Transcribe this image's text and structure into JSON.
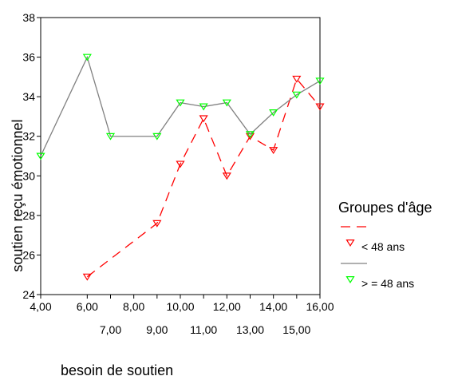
{
  "chart_data": {
    "type": "line",
    "xlabel": "besoin de soutien",
    "ylabel": "soutien reçu émotionnel",
    "xlim": [
      4,
      16
    ],
    "ylim": [
      24,
      38
    ],
    "x_ticks_row1": [
      "4,00",
      "6,00",
      "8,00",
      "10,00",
      "12,00",
      "14,00",
      "16,00"
    ],
    "x_ticks_row2": [
      "7,00",
      "9,00",
      "11,00",
      "13,00",
      "15,00"
    ],
    "y_ticks": [
      "24",
      "26",
      "28",
      "30",
      "32",
      "34",
      "36",
      "38"
    ],
    "legend_title": "Groupes d'âge",
    "legend_position": "right",
    "grid": false,
    "series": [
      {
        "name": "< 48 ans",
        "color": "#ff0000",
        "line_style": "dashed",
        "marker": "triangle-down",
        "points": [
          [
            6,
            24.9
          ],
          [
            9,
            27.6
          ],
          [
            10,
            30.6
          ],
          [
            11,
            32.9
          ],
          [
            12,
            30
          ],
          [
            13,
            32
          ],
          [
            14,
            31.3
          ],
          [
            15,
            34.9
          ],
          [
            16,
            33.5
          ]
        ]
      },
      {
        "name": "> = 48 ans",
        "color": "#00ff00",
        "line_color": "#808080",
        "line_style": "solid",
        "marker": "triangle-down",
        "points": [
          [
            4,
            31
          ],
          [
            6,
            36
          ],
          [
            7,
            32
          ],
          [
            9,
            32
          ],
          [
            10,
            33.7
          ],
          [
            11,
            33.5
          ],
          [
            12,
            33.7
          ],
          [
            13,
            32.1
          ],
          [
            14,
            33.2
          ],
          [
            15,
            34.1
          ],
          [
            16,
            34.8
          ]
        ]
      }
    ]
  }
}
